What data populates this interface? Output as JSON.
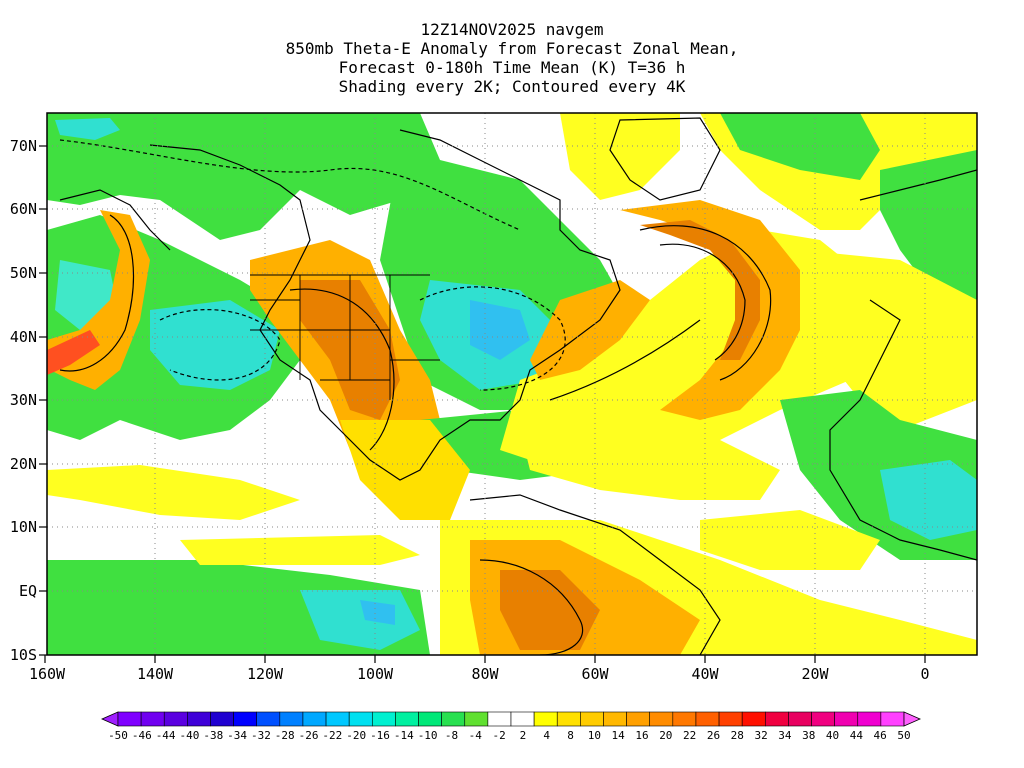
{
  "title": {
    "line1": "12Z14NOV2025 navgem",
    "line2": "850mb Theta-E Anomaly from Forecast Zonal Mean,",
    "line3": "Forecast 0-180h Time Mean (K) T=36 h",
    "line4": "Shading every 2K; Contoured every 4K"
  },
  "axes": {
    "lon_ticks": [
      "160W",
      "140W",
      "120W",
      "100W",
      "80W",
      "60W",
      "40W",
      "20W",
      "0"
    ],
    "lat_ticks": [
      "70N",
      "60N",
      "50N",
      "40N",
      "30N",
      "20N",
      "10N",
      "EQ",
      "10S"
    ]
  },
  "colorbar": {
    "labels": [
      "-50",
      "-46",
      "-44",
      "-40",
      "-38",
      "-34",
      "-32",
      "-28",
      "-26",
      "-22",
      "-20",
      "-16",
      "-14",
      "-10",
      "-8",
      "-4",
      "-2",
      "2",
      "4",
      "8",
      "10",
      "14",
      "16",
      "20",
      "22",
      "26",
      "28",
      "32",
      "34",
      "38",
      "40",
      "44",
      "46",
      "50"
    ],
    "colors": [
      "#7f00ff",
      "#7000f0",
      "#5a00e0",
      "#3f00d8",
      "#1f00d0",
      "#0000ff",
      "#0050ff",
      "#0080ff",
      "#00a8ff",
      "#00c8ff",
      "#00e0f0",
      "#00f0d0",
      "#00f0a0",
      "#00e878",
      "#28e050",
      "#60e030",
      "#ffffff",
      "#ffffff",
      "#ffff00",
      "#ffe000",
      "#ffcc00",
      "#ffb800",
      "#ffa000",
      "#ff8c00",
      "#ff7800",
      "#ff6000",
      "#ff4000",
      "#ff1000",
      "#f00040",
      "#e80060",
      "#f00080",
      "#f000b0",
      "#f000d0",
      "#ff40ff"
    ],
    "end_colors": {
      "low": "#a020ff",
      "high": "#ff60ff"
    }
  },
  "map_colors": {
    "green": "#40e040",
    "light_green": "#60e060",
    "cyan": "#30e0d0",
    "cyan_light": "#40e8c8",
    "blue": "#30c0f0",
    "yellow": "#ffff20",
    "yellow2": "#ffe000",
    "orange": "#ffb000",
    "dark_orange": "#e88000",
    "red": "#ff5020",
    "white": "#ffffff",
    "coast": "#000000"
  }
}
